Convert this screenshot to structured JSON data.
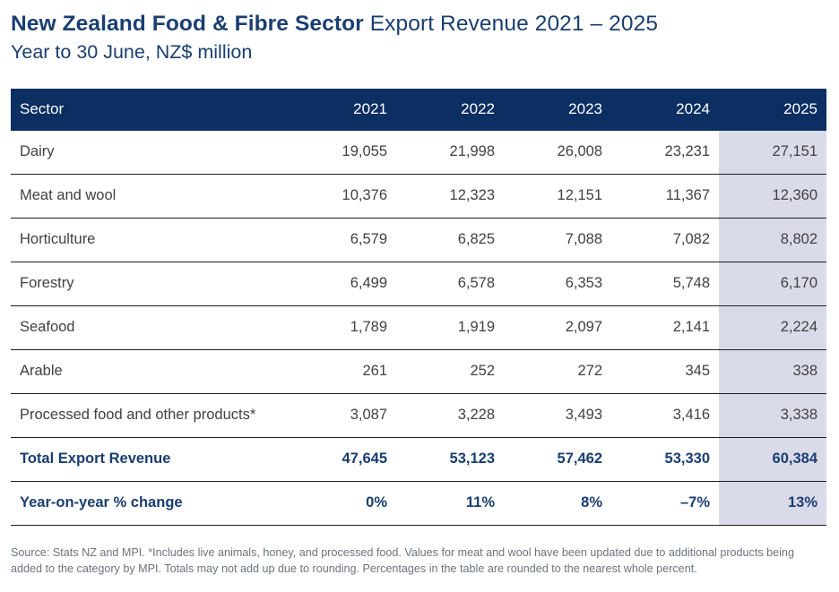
{
  "title": {
    "bold": "New Zealand Food & Fibre Sector",
    "regular": "Export Revenue 2021 – 2025",
    "subtitle": "Year to 30 June, NZ$ million"
  },
  "table": {
    "header": [
      "Sector",
      "2021",
      "2022",
      "2023",
      "2024",
      "2025"
    ],
    "rows": [
      {
        "label": "Dairy",
        "values": [
          "19,055",
          "21,998",
          "26,008",
          "23,231",
          "27,151"
        ]
      },
      {
        "label": "Meat and wool",
        "values": [
          "10,376",
          "12,323",
          "12,151",
          "11,367",
          "12,360"
        ]
      },
      {
        "label": "Horticulture",
        "values": [
          "6,579",
          "6,825",
          "7,088",
          "7,082",
          "8,802"
        ]
      },
      {
        "label": "Forestry",
        "values": [
          "6,499",
          "6,578",
          "6,353",
          "5,748",
          "6,170"
        ]
      },
      {
        "label": "Seafood",
        "values": [
          "1,789",
          "1,919",
          "2,097",
          "2,141",
          "2,224"
        ]
      },
      {
        "label": "Arable",
        "values": [
          "261",
          "252",
          "272",
          "345",
          "338"
        ]
      },
      {
        "label": "Processed food and other products*",
        "values": [
          "3,087",
          "3,228",
          "3,493",
          "3,416",
          "3,338"
        ]
      }
    ],
    "summary_rows": [
      {
        "label": "Total Export Revenue",
        "values": [
          "47,645",
          "53,123",
          "57,462",
          "53,330",
          "60,384"
        ]
      },
      {
        "label": "Year-on-year % change",
        "values": [
          "0%",
          "11%",
          "8%",
          "–7%",
          "13%"
        ]
      }
    ]
  },
  "footnote": "Source: Stats NZ and MPI. *Includes live animals, honey, and processed food. Values for meat and wool have been updated due to additional products being added to the category by MPI. Totals may not add up due to rounding. Percentages in the table are rounded to the nearest whole percent.",
  "colors": {
    "header_background": "#0b2f63",
    "highlight_column": "#dadbe9",
    "navy_text": "#1a3e70",
    "body_text": "#414042",
    "footnote_text": "#6b7480"
  },
  "chart_data": {
    "type": "table",
    "title": "New Zealand Food & Fibre Sector Export Revenue 2021 – 2025",
    "subtitle": "Year to 30 June, NZ$ million",
    "columns": [
      "Sector",
      "2021",
      "2022",
      "2023",
      "2024",
      "2025"
    ],
    "categories": [
      2021,
      2022,
      2023,
      2024,
      2025
    ],
    "highlighted_column": 2025,
    "series": [
      {
        "name": "Dairy",
        "values": [
          19055,
          21998,
          26008,
          23231,
          27151
        ]
      },
      {
        "name": "Meat and wool",
        "values": [
          10376,
          12323,
          12151,
          11367,
          12360
        ]
      },
      {
        "name": "Horticulture",
        "values": [
          6579,
          6825,
          7088,
          7082,
          8802
        ]
      },
      {
        "name": "Forestry",
        "values": [
          6499,
          6578,
          6353,
          5748,
          6170
        ]
      },
      {
        "name": "Seafood",
        "values": [
          1789,
          1919,
          2097,
          2141,
          2224
        ]
      },
      {
        "name": "Arable",
        "values": [
          261,
          252,
          272,
          345,
          338
        ]
      },
      {
        "name": "Processed food and other products*",
        "values": [
          3087,
          3228,
          3493,
          3416,
          3338
        ]
      },
      {
        "name": "Total Export Revenue",
        "values": [
          47645,
          53123,
          57462,
          53330,
          60384
        ]
      },
      {
        "name": "Year-on-year % change",
        "values": [
          "0%",
          "11%",
          "8%",
          "-7%",
          "13%"
        ]
      }
    ]
  }
}
